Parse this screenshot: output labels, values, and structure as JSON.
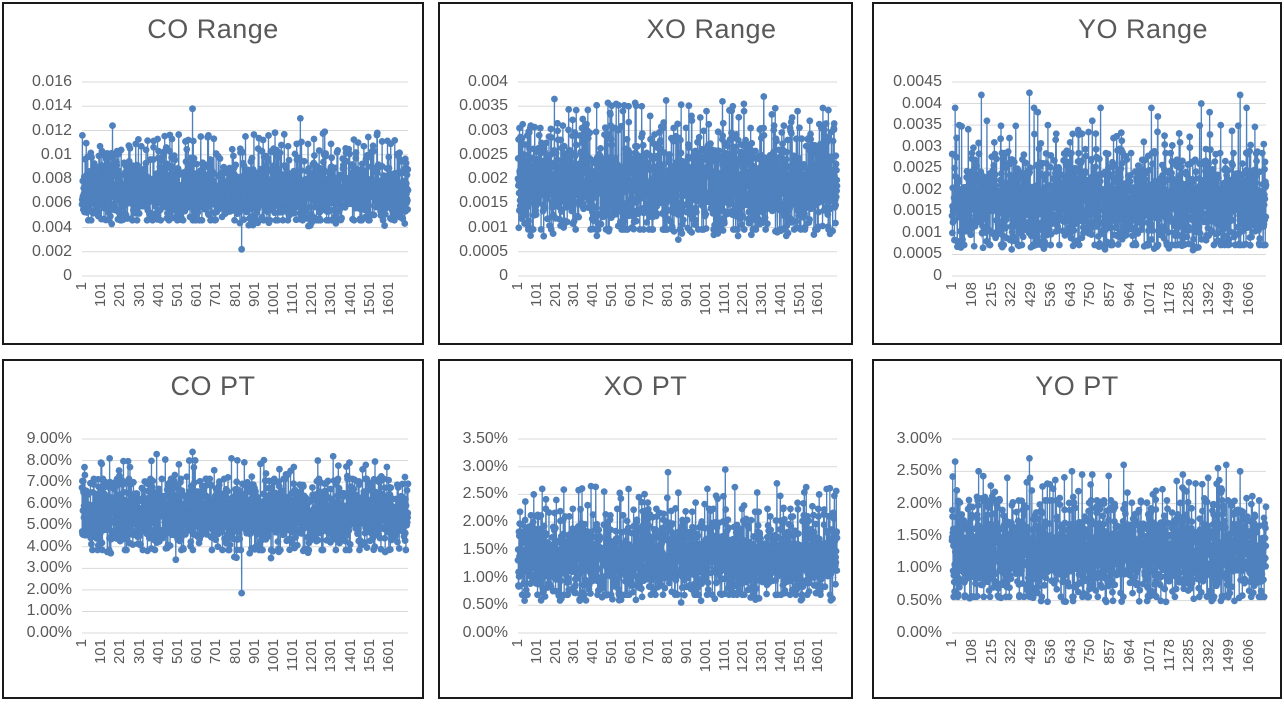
{
  "page": {
    "background": "#ffffff"
  },
  "style": {
    "series_color": "#4E81BD",
    "grid_color": "#D9D9D9",
    "text_color": "#595959",
    "panel_border_color": "#1a1a1a"
  },
  "chart_data": [
    {
      "type": "line",
      "title": "CO Range",
      "legend": "none",
      "grid": "horizontal",
      "series_color": "#4E81BD",
      "seed": 11,
      "y_axis": {
        "min": 0,
        "max": 0.016,
        "tick_labels": [
          "0.016",
          "0.014",
          "0.012",
          "0.01",
          "0.008",
          "0.006",
          "0.004",
          "0.002",
          "0"
        ]
      },
      "x_axis": {
        "total_categories": 1700,
        "tick_labels": [
          "1",
          "101",
          "201",
          "301",
          "401",
          "501",
          "601",
          "701",
          "801",
          "901",
          "1001",
          "1101",
          "1201",
          "1301",
          "1401",
          "1501",
          "1601"
        ],
        "tick_values": [
          1,
          101,
          201,
          301,
          401,
          501,
          601,
          701,
          801,
          901,
          1001,
          1101,
          1201,
          1301,
          1401,
          1501,
          1601
        ]
      },
      "distribution": {
        "mean": 0.007,
        "std": 0.00125,
        "clip_min": 0.0046,
        "clip_max": 0.0103,
        "upper_tail_prob": 0.05,
        "upper_tail_min": 0.0096,
        "upper_tail_max": 0.0119,
        "lower_tail_prob": 0.01,
        "lower_tail_min": 0.0041,
        "lower_tail_max": 0.0047
      },
      "outliers": [
        [
          3,
          0.0116
        ],
        [
          95,
          0.0107
        ],
        [
          160,
          0.0124
        ],
        [
          205,
          0.0104
        ],
        [
          310,
          0.0107
        ],
        [
          335,
          0.0104
        ],
        [
          395,
          0.0113
        ],
        [
          440,
          0.0106
        ],
        [
          470,
          0.0113
        ],
        [
          540,
          0.0111
        ],
        [
          577,
          0.0138
        ],
        [
          620,
          0.0115
        ],
        [
          660,
          0.0116
        ],
        [
          700,
          0.0101
        ],
        [
          790,
          0.0099
        ],
        [
          833,
          0.0022
        ],
        [
          950,
          0.0098
        ],
        [
          1000,
          0.0105
        ],
        [
          1040,
          0.0108
        ],
        [
          1075,
          0.0107
        ],
        [
          1120,
          0.0109
        ],
        [
          1139,
          0.013
        ],
        [
          1210,
          0.0113
        ],
        [
          1266,
          0.0119
        ],
        [
          1330,
          0.0102
        ],
        [
          1440,
          0.011
        ],
        [
          1470,
          0.0107
        ],
        [
          1540,
          0.0118
        ],
        [
          1565,
          0.0111
        ],
        [
          1610,
          0.0109
        ],
        [
          1650,
          0.0099
        ]
      ]
    },
    {
      "type": "line",
      "title": "XO Range",
      "legend": "none",
      "grid": "horizontal",
      "series_color": "#4E81BD",
      "seed": 22,
      "y_axis": {
        "min": 0,
        "max": 0.004,
        "tick_labels": [
          "0.004",
          "0.0035",
          "0.003",
          "0.0025",
          "0.002",
          "0.0015",
          "0.001",
          "0.0005",
          "0"
        ]
      },
      "x_axis": {
        "total_categories": 1700,
        "tick_labels": [
          "1",
          "101",
          "201",
          "301",
          "401",
          "501",
          "601",
          "701",
          "801",
          "901",
          "1001",
          "1101",
          "1201",
          "1301",
          "1401",
          "1501",
          "1601"
        ],
        "tick_values": [
          1,
          101,
          201,
          301,
          401,
          501,
          601,
          701,
          801,
          901,
          1001,
          1101,
          1201,
          1301,
          1401,
          1501,
          1601
        ]
      },
      "distribution": {
        "mean": 0.00188,
        "std": 0.00048,
        "clip_min": 0.00096,
        "clip_max": 0.00305,
        "upper_tail_prob": 0.06,
        "upper_tail_min": 0.0028,
        "upper_tail_max": 0.00355,
        "lower_tail_prob": 0.015,
        "lower_tail_min": 0.00082,
        "lower_tail_max": 0.00098
      },
      "outliers": [
        [
          195,
          0.00365
        ],
        [
          240,
          0.0031
        ],
        [
          420,
          0.00352
        ],
        [
          480,
          0.00357
        ],
        [
          560,
          0.0034
        ],
        [
          590,
          0.0035
        ],
        [
          625,
          0.00357
        ],
        [
          660,
          0.0035
        ],
        [
          705,
          0.0033
        ],
        [
          790,
          0.00362
        ],
        [
          855,
          0.00075
        ],
        [
          925,
          0.0033
        ],
        [
          1005,
          0.0034
        ],
        [
          1090,
          0.0036
        ],
        [
          1145,
          0.0035
        ],
        [
          1205,
          0.0034
        ],
        [
          1310,
          0.0037
        ],
        [
          1365,
          0.0031
        ],
        [
          1450,
          0.00305
        ],
        [
          1490,
          0.0034
        ],
        [
          1555,
          0.0032
        ],
        [
          1620,
          0.00305
        ]
      ]
    },
    {
      "type": "line",
      "title": "YO Range",
      "legend": "none",
      "grid": "horizontal",
      "series_color": "#4E81BD",
      "seed": 33,
      "y_axis": {
        "min": 0,
        "max": 0.0045,
        "tick_labels": [
          "0.0045",
          "0.004",
          "0.0035",
          "0.003",
          "0.0025",
          "0.002",
          "0.0015",
          "0.001",
          "0.0005",
          "0"
        ]
      },
      "x_axis": {
        "total_categories": 1700,
        "tick_labels": [
          "1",
          "108",
          "215",
          "322",
          "429",
          "536",
          "643",
          "750",
          "857",
          "964",
          "1071",
          "1178",
          "1285",
          "1392",
          "1499",
          "1606"
        ],
        "tick_values": [
          1,
          108,
          215,
          322,
          429,
          536,
          643,
          750,
          857,
          964,
          1071,
          1178,
          1285,
          1392,
          1499,
          1606
        ]
      },
      "distribution": {
        "mean": 0.00168,
        "std": 0.0005,
        "clip_min": 0.00072,
        "clip_max": 0.00285,
        "upper_tail_prob": 0.05,
        "upper_tail_min": 0.0026,
        "upper_tail_max": 0.0035,
        "lower_tail_prob": 0.02,
        "lower_tail_min": 0.0006,
        "lower_tail_max": 0.00075
      },
      "outliers": [
        [
          18,
          0.0039
        ],
        [
          40,
          0.0035
        ],
        [
          160,
          0.0042
        ],
        [
          190,
          0.0036
        ],
        [
          230,
          0.0031
        ],
        [
          420,
          0.00425
        ],
        [
          445,
          0.0039
        ],
        [
          465,
          0.0038
        ],
        [
          520,
          0.0035
        ],
        [
          565,
          0.0033
        ],
        [
          640,
          0.0031
        ],
        [
          705,
          0.0033
        ],
        [
          760,
          0.0036
        ],
        [
          805,
          0.0039
        ],
        [
          875,
          0.0032
        ],
        [
          1080,
          0.0039
        ],
        [
          1115,
          0.0037
        ],
        [
          1235,
          0.0031
        ],
        [
          1350,
          0.004
        ],
        [
          1395,
          0.0038
        ],
        [
          1455,
          0.0035
        ],
        [
          1560,
          0.0042
        ],
        [
          1595,
          0.0039
        ]
      ]
    },
    {
      "type": "line",
      "title": "CO PT",
      "legend": "none",
      "grid": "horizontal",
      "series_color": "#4E81BD",
      "seed": 44,
      "y_axis": {
        "min": 0,
        "max": 0.09,
        "tick_labels": [
          "9.00%",
          "8.00%",
          "7.00%",
          "6.00%",
          "5.00%",
          "4.00%",
          "3.00%",
          "2.00%",
          "1.00%",
          "0.00%"
        ]
      },
      "x_axis": {
        "total_categories": 1700,
        "tick_labels": [
          "1",
          "101",
          "201",
          "301",
          "401",
          "501",
          "601",
          "701",
          "801",
          "901",
          "1001",
          "1101",
          "1201",
          "1301",
          "1401",
          "1501",
          "1601"
        ],
        "tick_values": [
          1,
          101,
          201,
          301,
          401,
          501,
          601,
          701,
          801,
          901,
          1001,
          1101,
          1201,
          1301,
          1401,
          1501,
          1601
        ]
      },
      "distribution": {
        "mean": 0.0545,
        "std": 0.0078,
        "clip_min": 0.0385,
        "clip_max": 0.0715,
        "upper_tail_prob": 0.045,
        "upper_tail_min": 0.0675,
        "upper_tail_max": 0.0805,
        "lower_tail_prob": 0.008,
        "lower_tail_min": 0.0345,
        "lower_tail_max": 0.039
      },
      "outliers": [
        [
          3,
          0.0705
        ],
        [
          100,
          0.079
        ],
        [
          145,
          0.081
        ],
        [
          390,
          0.083
        ],
        [
          490,
          0.034
        ],
        [
          560,
          0.08
        ],
        [
          577,
          0.084
        ],
        [
          690,
          0.0755
        ],
        [
          780,
          0.081
        ],
        [
          833,
          0.0185
        ],
        [
          960,
          0.074
        ],
        [
          1030,
          0.076
        ],
        [
          1105,
          0.077
        ],
        [
          1230,
          0.08
        ],
        [
          1310,
          0.082
        ],
        [
          1395,
          0.079
        ],
        [
          1480,
          0.078
        ],
        [
          1590,
          0.077
        ]
      ]
    },
    {
      "type": "line",
      "title": "XO PT",
      "legend": "none",
      "grid": "horizontal",
      "series_color": "#4E81BD",
      "seed": 55,
      "y_axis": {
        "min": 0,
        "max": 0.035,
        "tick_labels": [
          "3.50%",
          "3.00%",
          "2.50%",
          "2.00%",
          "1.50%",
          "1.00%",
          "0.50%",
          "0.00%"
        ]
      },
      "x_axis": {
        "total_categories": 1700,
        "tick_labels": [
          "1",
          "101",
          "201",
          "301",
          "401",
          "501",
          "601",
          "701",
          "801",
          "901",
          "1001",
          "1101",
          "1201",
          "1301",
          "1401",
          "1501",
          "1601"
        ],
        "tick_values": [
          1,
          101,
          201,
          301,
          401,
          501,
          601,
          701,
          801,
          901,
          1001,
          1101,
          1201,
          1301,
          1401,
          1501,
          1601
        ]
      },
      "distribution": {
        "mean": 0.0136,
        "std": 0.0034,
        "clip_min": 0.0069,
        "clip_max": 0.0224,
        "upper_tail_prob": 0.04,
        "upper_tail_min": 0.021,
        "upper_tail_max": 0.0265,
        "lower_tail_prob": 0.018,
        "lower_tail_min": 0.0058,
        "lower_tail_max": 0.0072
      },
      "outliers": [
        [
          85,
          0.025
        ],
        [
          130,
          0.026
        ],
        [
          205,
          0.024
        ],
        [
          390,
          0.0265
        ],
        [
          460,
          0.0255
        ],
        [
          550,
          0.006
        ],
        [
          645,
          0.0245
        ],
        [
          800,
          0.029
        ],
        [
          870,
          0.0055
        ],
        [
          1010,
          0.026
        ],
        [
          1105,
          0.0295
        ],
        [
          1205,
          0.023
        ],
        [
          1380,
          0.027
        ],
        [
          1490,
          0.0235
        ],
        [
          1605,
          0.025
        ]
      ]
    },
    {
      "type": "line",
      "title": "YO PT",
      "legend": "none",
      "grid": "horizontal",
      "series_color": "#4E81BD",
      "seed": 66,
      "y_axis": {
        "min": 0,
        "max": 0.03,
        "tick_labels": [
          "3.00%",
          "2.50%",
          "2.00%",
          "1.50%",
          "1.00%",
          "0.50%",
          "0.00%"
        ]
      },
      "x_axis": {
        "total_categories": 1700,
        "tick_labels": [
          "1",
          "108",
          "215",
          "322",
          "429",
          "536",
          "643",
          "750",
          "857",
          "964",
          "1071",
          "1178",
          "1285",
          "1392",
          "1499",
          "1606"
        ],
        "tick_values": [
          1,
          108,
          215,
          322,
          429,
          536,
          643,
          750,
          857,
          964,
          1071,
          1178,
          1285,
          1392,
          1499,
          1606
        ]
      },
      "distribution": {
        "mean": 0.0125,
        "std": 0.0034,
        "clip_min": 0.0056,
        "clip_max": 0.0205,
        "upper_tail_prob": 0.05,
        "upper_tail_min": 0.019,
        "upper_tail_max": 0.0245,
        "lower_tail_prob": 0.02,
        "lower_tail_min": 0.0048,
        "lower_tail_max": 0.0058
      },
      "outliers": [
        [
          18,
          0.0265
        ],
        [
          145,
          0.025
        ],
        [
          300,
          0.024
        ],
        [
          420,
          0.027
        ],
        [
          530,
          0.023
        ],
        [
          650,
          0.025
        ],
        [
          705,
          0.0245
        ],
        [
          760,
          0.0245
        ],
        [
          930,
          0.026
        ],
        [
          1105,
          0.022
        ],
        [
          1250,
          0.0245
        ],
        [
          1355,
          0.023
        ],
        [
          1440,
          0.0255
        ],
        [
          1485,
          0.026
        ],
        [
          1560,
          0.025
        ]
      ]
    }
  ]
}
